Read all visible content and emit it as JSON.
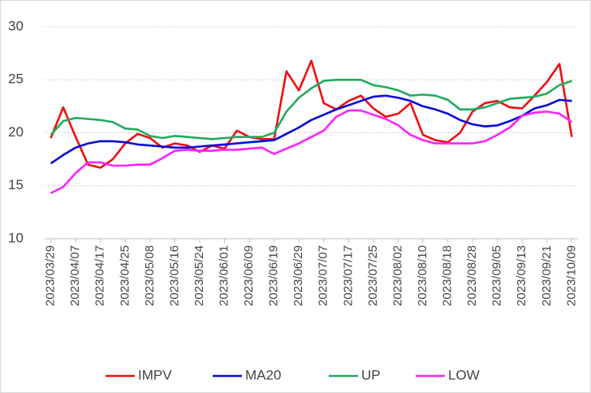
{
  "chart_data": {
    "type": "line",
    "categories": [
      "2023/03/29",
      null,
      "2023/04/07",
      null,
      "2023/04/17",
      null,
      "2023/04/25",
      null,
      "2023/05/08",
      null,
      "2023/05/16",
      null,
      "2023/05/24",
      null,
      "2023/06/01",
      null,
      "2023/06/09",
      null,
      "2023/06/19",
      null,
      "2023/06/29",
      null,
      "2023/07/07",
      null,
      "2023/07/17",
      null,
      "2023/07/25",
      null,
      "2023/08/02",
      null,
      "2023/08/10",
      null,
      "2023/08/18",
      null,
      "2023/08/28",
      null,
      "2023/09/05",
      null,
      "2023/09/13",
      null,
      "2023/09/21",
      null,
      "2023/10/09"
    ],
    "series": [
      {
        "name": "IMPV",
        "color": "#ee1111",
        "values": [
          19.5,
          22.4,
          19.6,
          17.0,
          16.7,
          17.5,
          19.0,
          19.9,
          19.5,
          18.6,
          19.0,
          18.8,
          18.2,
          18.8,
          18.5,
          20.2,
          19.6,
          19.4,
          19.4,
          25.8,
          24.0,
          26.8,
          22.8,
          22.2,
          23.0,
          23.5,
          22.3,
          21.5,
          21.8,
          22.8,
          19.8,
          19.3,
          19.1,
          20.0,
          22.0,
          22.8,
          23.0,
          22.4,
          22.3,
          23.5,
          24.8,
          26.5,
          19.6
        ]
      },
      {
        "name": "MA20",
        "color": "#0a0ad8",
        "values": [
          17.1,
          17.9,
          18.6,
          19.0,
          19.2,
          19.2,
          19.1,
          18.9,
          18.8,
          18.7,
          18.6,
          18.6,
          18.7,
          18.8,
          18.9,
          19.0,
          19.1,
          19.2,
          19.3,
          19.9,
          20.5,
          21.2,
          21.7,
          22.2,
          22.6,
          23.0,
          23.4,
          23.5,
          23.3,
          23.0,
          22.5,
          22.2,
          21.8,
          21.2,
          20.8,
          20.6,
          20.7,
          21.1,
          21.6,
          22.3,
          22.6,
          23.1,
          23.0
        ]
      },
      {
        "name": "UP",
        "color": "#22aa5e",
        "values": [
          19.8,
          21.1,
          21.4,
          21.3,
          21.2,
          21.0,
          20.4,
          20.3,
          19.7,
          19.5,
          19.7,
          19.6,
          19.5,
          19.4,
          19.5,
          19.6,
          19.6,
          19.6,
          20.0,
          22.0,
          23.3,
          24.2,
          24.9,
          25.0,
          25.0,
          25.0,
          24.5,
          24.3,
          24.0,
          23.5,
          23.6,
          23.5,
          23.1,
          22.2,
          22.2,
          22.4,
          22.8,
          23.2,
          23.3,
          23.4,
          23.7,
          24.5,
          24.9
        ]
      },
      {
        "name": "LOW",
        "color": "#ff22ff",
        "values": [
          14.3,
          14.9,
          16.2,
          17.2,
          17.2,
          16.9,
          16.9,
          17.0,
          17.0,
          17.6,
          18.3,
          18.4,
          18.3,
          18.3,
          18.4,
          18.4,
          18.5,
          18.6,
          18.0,
          18.5,
          19.0,
          19.6,
          20.2,
          21.5,
          22.1,
          22.1,
          21.7,
          21.3,
          20.7,
          19.8,
          19.3,
          19.0,
          19.0,
          19.0,
          19.0,
          19.2,
          19.8,
          20.5,
          21.6,
          21.9,
          22.0,
          21.8,
          21.0
        ]
      }
    ],
    "ylim": [
      10,
      30
    ],
    "yticks": [
      10,
      15,
      20,
      25,
      30
    ],
    "grid": true,
    "legend": "bottom"
  }
}
